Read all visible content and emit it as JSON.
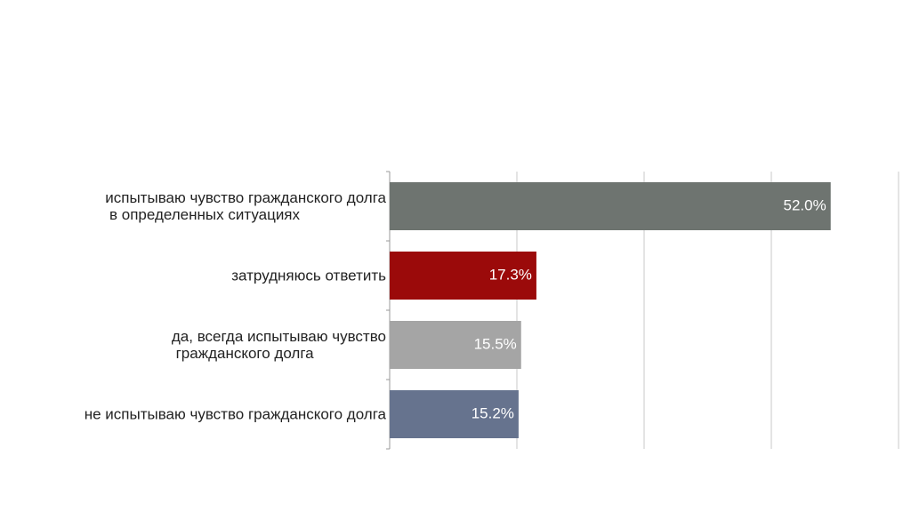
{
  "chart_data": {
    "type": "barh",
    "categories": [
      "испытываю чувство гражданского долга\n в определенных ситуациях",
      "затрудняюсь ответить",
      "да, всегда испытываю чувство\n гражданского долга",
      "не испытываю чувство гражданского долга"
    ],
    "values": [
      52.0,
      17.3,
      15.5,
      15.2
    ],
    "value_labels": [
      "52.0%",
      "17.3%",
      "15.5%",
      "15.2%"
    ],
    "colors": [
      "#6e7470",
      "#9b0a0a",
      "#a5a5a5",
      "#66738e"
    ],
    "xlim": [
      0,
      60
    ],
    "xticks": [
      0,
      15,
      30,
      45,
      60
    ],
    "grid": true
  }
}
